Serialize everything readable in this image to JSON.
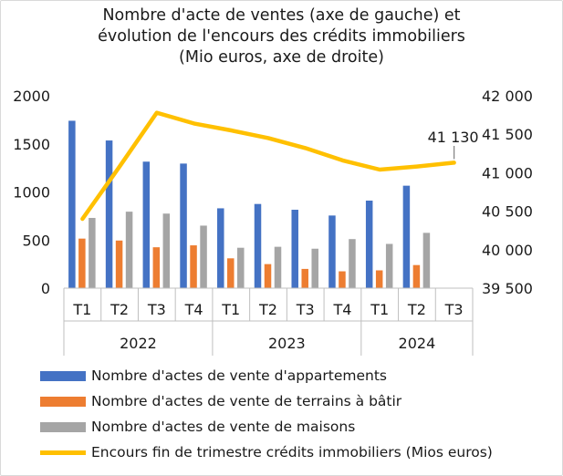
{
  "chart_data": {
    "type": "bar",
    "title_lines": [
      "Nombre d'acte de ventes (axe de gauche) et",
      "évolution de l'encours des crédits immobiliers",
      "(Mio euros, axe de droite)"
    ],
    "categories": [
      "T1",
      "T2",
      "T3",
      "T4",
      "T1",
      "T2",
      "T3",
      "T4",
      "T1",
      "T2",
      "T3"
    ],
    "year_groups": [
      {
        "label": "2022",
        "count": 4
      },
      {
        "label": "2023",
        "count": 4
      },
      {
        "label": "2024",
        "count": 3
      }
    ],
    "y_left": {
      "min": 0,
      "max": 2000,
      "ticks": [
        0,
        500,
        1000,
        1500,
        2000
      ],
      "tick_labels": [
        "0",
        "500",
        "1000",
        "1500",
        "2000"
      ]
    },
    "y_right": {
      "min": 39500,
      "max": 42000,
      "ticks": [
        39500,
        40000,
        40500,
        41000,
        41500,
        42000
      ],
      "tick_labels": [
        "39 500",
        "40 000",
        "40 500",
        "41 000",
        "41 500",
        "42 000"
      ]
    },
    "series": [
      {
        "name": "Nombre d'actes de vente d'appartements",
        "kind": "bar",
        "axis": "left",
        "color": "#4472c4",
        "values": [
          1740,
          1535,
          1315,
          1295,
          830,
          875,
          815,
          755,
          910,
          1065,
          null
        ]
      },
      {
        "name": "Nombre d'actes de vente de terrains à bâtir",
        "kind": "bar",
        "axis": "left",
        "color": "#ed7d31",
        "values": [
          515,
          495,
          425,
          445,
          310,
          250,
          200,
          175,
          185,
          240,
          null
        ]
      },
      {
        "name": "Nombre d'actes de vente de maisons",
        "kind": "bar",
        "axis": "left",
        "color": "#a5a5a5",
        "values": [
          730,
          795,
          775,
          650,
          420,
          430,
          410,
          510,
          460,
          575,
          null
        ]
      },
      {
        "name": "Encours fin de trimestre crédits immobiliers (Mios euros)",
        "kind": "line",
        "axis": "right",
        "color": "#ffc000",
        "values": [
          40400,
          41080,
          41780,
          41640,
          41550,
          41450,
          41320,
          41160,
          41040,
          41080,
          41130
        ]
      }
    ],
    "annotations": [
      {
        "text": "41 130",
        "index": 10,
        "series": 3
      }
    ],
    "grid": false,
    "legend_position": "bottom"
  }
}
